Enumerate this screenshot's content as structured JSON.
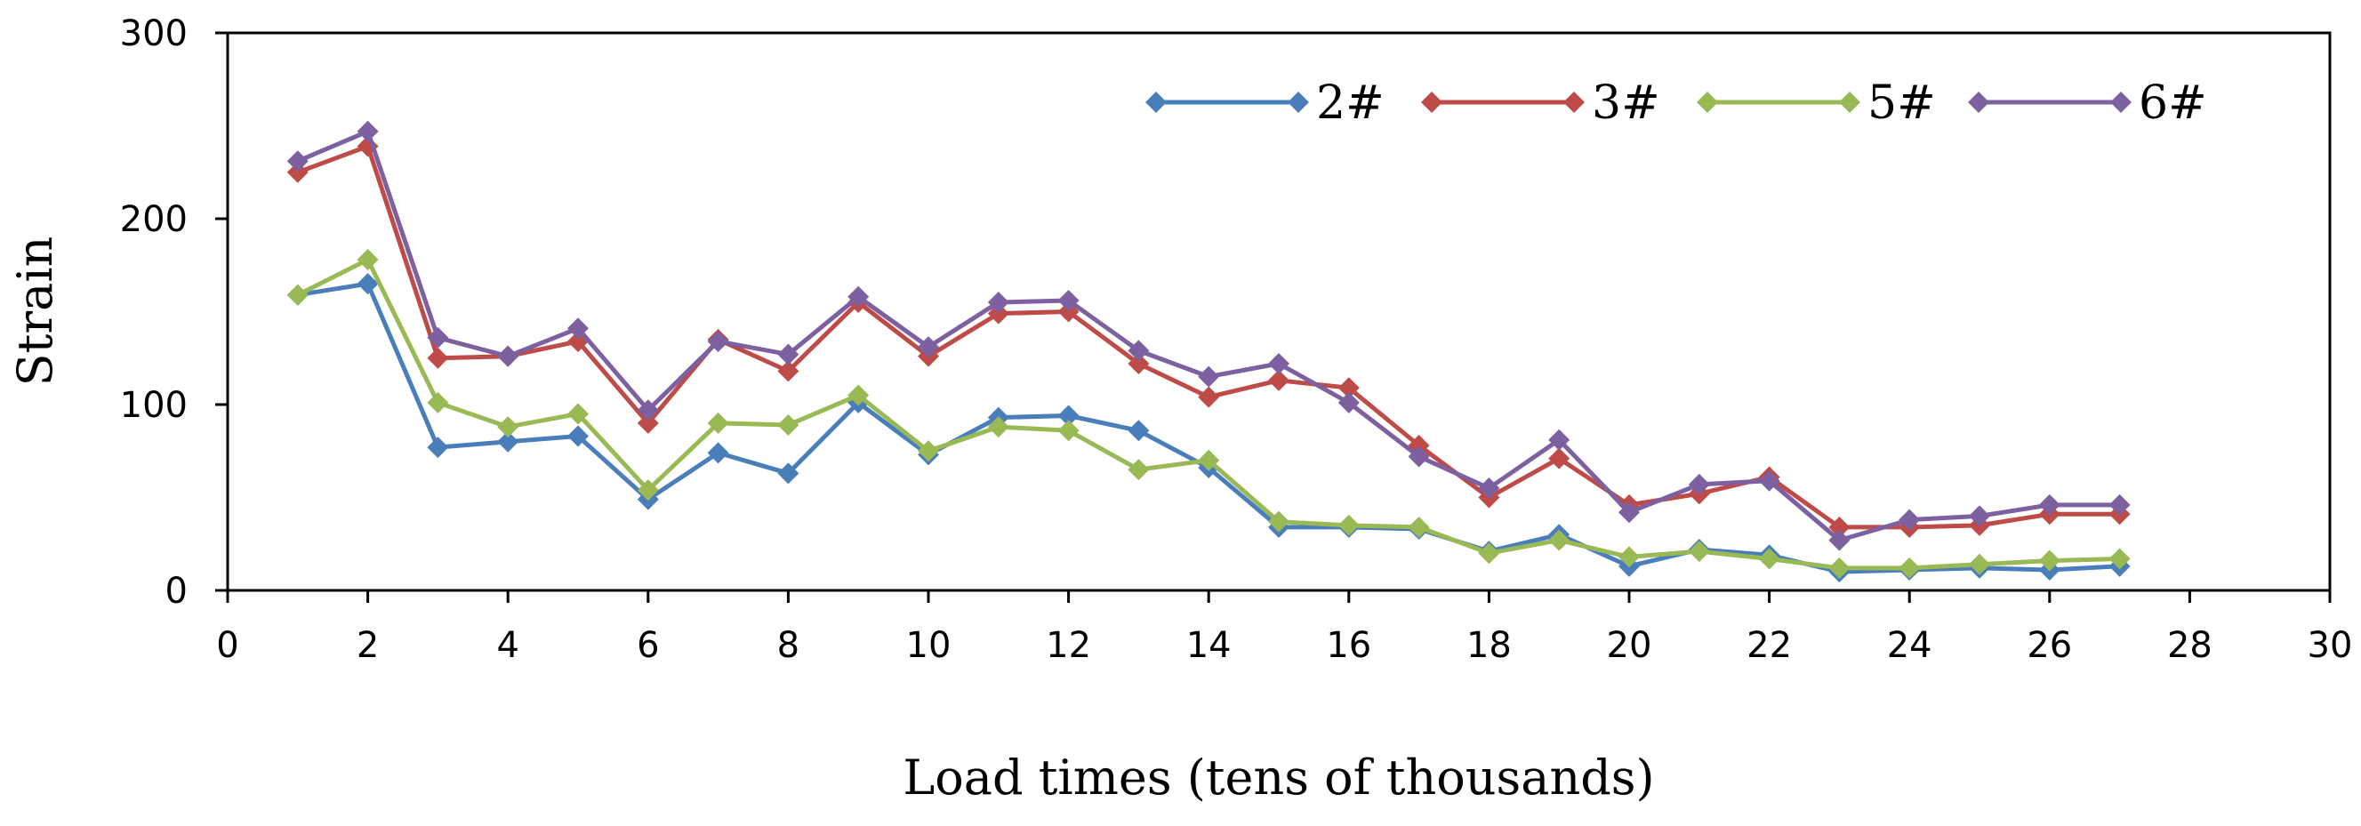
{
  "chart_data": {
    "type": "line",
    "title": "",
    "xlabel": "Load times (tens of thousands)",
    "ylabel": "Strain",
    "xlim": [
      0,
      30
    ],
    "ylim": [
      0,
      300
    ],
    "xticks": [
      "0",
      "2",
      "4",
      "6",
      "8",
      "10",
      "12",
      "14",
      "16",
      "18",
      "20",
      "22",
      "24",
      "26",
      "28",
      "30"
    ],
    "yticks": [
      "0",
      "100",
      "200",
      "300"
    ],
    "grid": false,
    "legend_position": "top-right",
    "x": [
      1,
      2,
      3,
      4,
      5,
      6,
      7,
      8,
      9,
      10,
      11,
      12,
      13,
      14,
      15,
      16,
      17,
      18,
      19,
      20,
      21,
      22,
      23,
      24,
      25,
      26,
      27
    ],
    "series": [
      {
        "name": "2#",
        "color": "#4a7ebb",
        "values": [
          159,
          165,
          77,
          80,
          83,
          49,
          74,
          63,
          101,
          73,
          93,
          94,
          86,
          66,
          34,
          34,
          33,
          21,
          30,
          13,
          22,
          19,
          10,
          11,
          12,
          11,
          13
        ]
      },
      {
        "name": "3#",
        "color": "#be4b48",
        "values": [
          225,
          239,
          125,
          126,
          134,
          90,
          135,
          118,
          155,
          126,
          149,
          150,
          122,
          104,
          113,
          109,
          78,
          50,
          71,
          46,
          52,
          61,
          34,
          34,
          35,
          41,
          41
        ]
      },
      {
        "name": "5#",
        "color": "#98b954",
        "values": [
          159,
          178,
          101,
          88,
          95,
          54,
          90,
          89,
          105,
          75,
          88,
          86,
          65,
          70,
          37,
          35,
          34,
          20,
          27,
          18,
          21,
          17,
          12,
          12,
          14,
          16,
          17
        ]
      },
      {
        "name": "6#",
        "color": "#7d60a0",
        "values": [
          231,
          247,
          136,
          126,
          141,
          97,
          134,
          127,
          158,
          131,
          155,
          156,
          129,
          115,
          122,
          101,
          72,
          55,
          81,
          42,
          57,
          59,
          27,
          38,
          40,
          46,
          46
        ]
      }
    ]
  }
}
